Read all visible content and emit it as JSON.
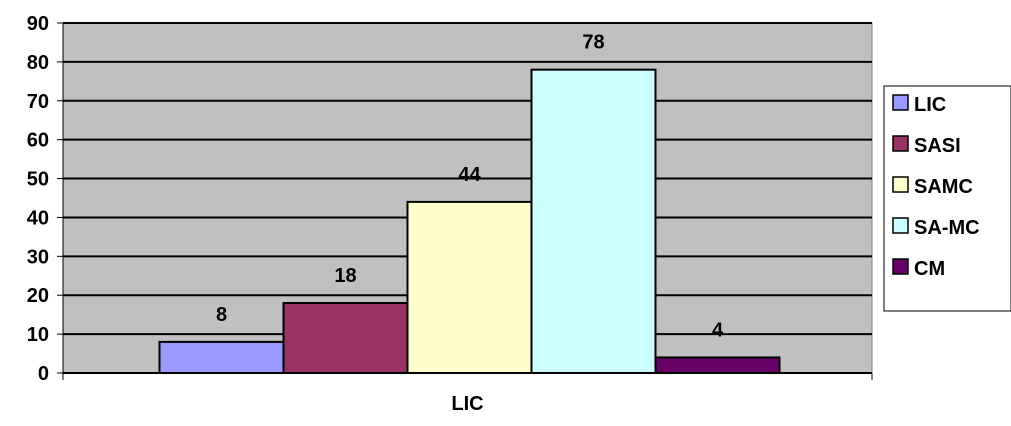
{
  "chart_data": {
    "type": "bar",
    "categories": [
      "LIC"
    ],
    "series": [
      {
        "name": "LIC",
        "values": [
          8
        ],
        "color": "#9999FF"
      },
      {
        "name": "SASI",
        "values": [
          18
        ],
        "color": "#993366"
      },
      {
        "name": "SAMC",
        "values": [
          44
        ],
        "color": "#FFFFCC"
      },
      {
        "name": "SA-MC",
        "values": [
          78
        ],
        "color": "#CCFFFF"
      },
      {
        "name": "CM",
        "values": [
          4
        ],
        "color": "#660066"
      }
    ],
    "title": "",
    "xlabel": "",
    "ylabel": "",
    "ylim": [
      0,
      90
    ],
    "yticks": [
      0,
      10,
      20,
      30,
      40,
      50,
      60,
      70,
      80,
      90
    ],
    "grid": true,
    "plot_background": "#C0C0C0",
    "legend_position": "right"
  }
}
